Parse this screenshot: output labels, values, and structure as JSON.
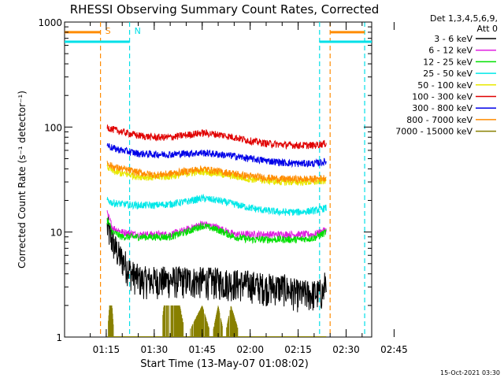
{
  "chart_data": {
    "type": "line",
    "title": "RHESSI Observing Summary Count Rates, Corrected",
    "xlabel": "Start Time (13-May-07 01:08:02)",
    "ylabel": "Corrected Count Rate (s⁻¹ detector⁻¹)",
    "yscale": "log",
    "ylim": [
      1,
      1000
    ],
    "xlim_minutes": [
      1.97,
      98.0
    ],
    "x_tick_labels": [
      "01:15",
      "01:30",
      "01:45",
      "02:00",
      "02:15",
      "02:30",
      "02:45"
    ],
    "y_tick_labels": [
      "1",
      "10",
      "100",
      "1000"
    ],
    "legend_header": [
      "Det 1,3,4,5,6,9,",
      "Att 0"
    ],
    "legend_placement": "right",
    "timestamp": "15-Oct-2021 03:30",
    "data_window_minutes": [
      15.3,
      83.8
    ],
    "markers": [
      {
        "label": "S",
        "x_minutes": 13.2,
        "color": "#ff8c00"
      },
      {
        "label": "N",
        "x_minutes": 22.3,
        "color": "#00e0e8"
      },
      {
        "label": "",
        "x_minutes": 81.7,
        "color": "#00e0e8"
      },
      {
        "label": "",
        "x_minutes": 85.0,
        "color": "#ff8c00"
      },
      {
        "label": "",
        "x_minutes": 95.8,
        "color": "#00e0e8"
      }
    ],
    "bars": [
      {
        "color": "#ff8c00",
        "level": 800,
        "x_ranges": [
          [
            1.97,
            13.2
          ],
          [
            85.0,
            95.8
          ]
        ]
      },
      {
        "color": "#00e0e8",
        "level": 650,
        "x_ranges": [
          [
            1.97,
            22.3
          ],
          [
            81.7,
            98.0
          ]
        ]
      }
    ],
    "series": [
      {
        "name": "3 - 6 keV",
        "color": "#000000",
        "x": [
          15.3,
          17,
          19,
          21,
          23,
          26,
          30,
          40,
          50,
          60,
          65,
          70,
          75,
          80,
          83,
          83.8
        ],
        "y": [
          11,
          8,
          6,
          5,
          4,
          3.5,
          3.5,
          3.5,
          3.4,
          3.2,
          3.0,
          3.0,
          2.6,
          2.6,
          2.7,
          4
        ]
      },
      {
        "name": "6 - 12 keV",
        "color": "#e020e0",
        "x": [
          15.3,
          17,
          20,
          25,
          30,
          35,
          40,
          45,
          50,
          55,
          60,
          65,
          70,
          75,
          80,
          83.8
        ],
        "y": [
          15,
          11,
          10,
          9.5,
          9.5,
          9.5,
          10.5,
          12,
          11,
          9.5,
          9.5,
          9.5,
          9.5,
          9.5,
          9.5,
          10.5
        ]
      },
      {
        "name": "12 - 25 keV",
        "color": "#00e000",
        "x": [
          15.3,
          17,
          20,
          25,
          30,
          35,
          40,
          45,
          50,
          55,
          60,
          65,
          70,
          75,
          80,
          83.8
        ],
        "y": [
          13,
          10,
          9,
          9,
          9,
          9,
          10,
          11.5,
          10.5,
          9,
          8.5,
          8.5,
          8.5,
          8.5,
          8.8,
          10
        ]
      },
      {
        "name": "25 - 50 keV",
        "color": "#00e8e8",
        "x": [
          15.3,
          17,
          20,
          25,
          30,
          35,
          40,
          45,
          50,
          55,
          60,
          65,
          70,
          75,
          80,
          83.8
        ],
        "y": [
          20,
          19,
          18.5,
          18,
          18,
          18.5,
          19.5,
          21,
          20,
          18.5,
          17,
          16,
          15.5,
          15.5,
          16,
          17
        ]
      },
      {
        "name": "50 - 100 keV",
        "color": "#e8e800",
        "x": [
          15.3,
          17,
          20,
          25,
          30,
          35,
          40,
          45,
          50,
          55,
          60,
          65,
          70,
          75,
          80,
          83.8
        ],
        "y": [
          42,
          38,
          36,
          34,
          33,
          34,
          36,
          38,
          36,
          34,
          32,
          31,
          30,
          30,
          30,
          31
        ]
      },
      {
        "name": "100 - 300 keV",
        "color": "#e00000",
        "x": [
          15.3,
          17,
          20,
          25,
          30,
          35,
          40,
          45,
          50,
          55,
          60,
          65,
          70,
          75,
          80,
          83.8
        ],
        "y": [
          100,
          95,
          90,
          83,
          80,
          80,
          84,
          88,
          85,
          80,
          74,
          70,
          68,
          67,
          67,
          70
        ]
      },
      {
        "name": "300 - 800 keV",
        "color": "#0000e8",
        "x": [
          15.3,
          17,
          20,
          25,
          30,
          35,
          40,
          45,
          50,
          55,
          60,
          65,
          70,
          75,
          80,
          83.8
        ],
        "y": [
          68,
          63,
          60,
          56,
          55,
          55,
          56,
          57,
          55,
          53,
          50,
          48,
          46,
          45,
          45,
          47
        ]
      },
      {
        "name": "800 - 7000 keV",
        "color": "#ff8c00",
        "x": [
          15.3,
          17,
          20,
          25,
          30,
          35,
          40,
          45,
          50,
          55,
          60,
          65,
          70,
          75,
          80,
          83.8
        ],
        "y": [
          46,
          42,
          40,
          37,
          35,
          36,
          38,
          40,
          38,
          36,
          34,
          33,
          32,
          32,
          32,
          33
        ]
      },
      {
        "name": "7000 - 15000 keV",
        "color": "#888000",
        "x": [
          15.3,
          16,
          16.8,
          17.5,
          32,
          33,
          38,
          40,
          45,
          48,
          50,
          52,
          54,
          57
        ],
        "y": [
          1,
          2,
          2,
          1,
          1,
          2,
          2,
          1,
          2,
          1,
          2,
          1,
          2,
          1
        ]
      }
    ]
  }
}
